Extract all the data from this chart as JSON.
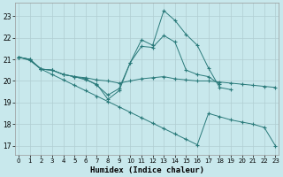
{
  "xlabel": "Humidex (Indice chaleur)",
  "xlim": [
    -0.3,
    23.3
  ],
  "ylim": [
    16.6,
    23.6
  ],
  "yticks": [
    17,
    18,
    19,
    20,
    21,
    22,
    23
  ],
  "xticks": [
    0,
    1,
    2,
    3,
    4,
    5,
    6,
    7,
    8,
    9,
    10,
    11,
    12,
    13,
    14,
    15,
    16,
    17,
    18,
    19,
    20,
    21,
    22,
    23
  ],
  "bg_color": "#c8e8ec",
  "grid_color": "#b0cdd2",
  "line_color": "#2a7a7a",
  "lines": [
    {
      "x": [
        0,
        1,
        2,
        3,
        4,
        5,
        6,
        7,
        8,
        9,
        10,
        11,
        12,
        13,
        14,
        15,
        16,
        17,
        18,
        19,
        20,
        21,
        22,
        23
      ],
      "y": [
        21.1,
        21.0,
        20.55,
        20.5,
        20.3,
        20.2,
        20.15,
        20.05,
        20.0,
        19.9,
        20.0,
        20.1,
        20.15,
        20.2,
        20.1,
        20.05,
        20.0,
        20.0,
        19.95,
        19.9,
        19.85,
        19.8,
        19.75,
        19.7
      ]
    },
    {
      "x": [
        0,
        1,
        2,
        3,
        4,
        5,
        6,
        7,
        8,
        9,
        10,
        11,
        12,
        13,
        14,
        15,
        16,
        17,
        18,
        19
      ],
      "y": [
        21.1,
        21.0,
        20.55,
        20.5,
        20.3,
        20.2,
        20.05,
        19.85,
        19.15,
        19.55,
        20.85,
        21.9,
        21.65,
        23.25,
        22.8,
        22.15,
        21.65,
        20.6,
        19.7,
        19.6
      ]
    },
    {
      "x": [
        0,
        1,
        2,
        3,
        4,
        5,
        6,
        7,
        8,
        9,
        10,
        11,
        12,
        13,
        14,
        15,
        16,
        17,
        18
      ],
      "y": [
        21.1,
        21.0,
        20.55,
        20.5,
        20.3,
        20.2,
        20.1,
        19.8,
        19.35,
        19.65,
        20.85,
        21.6,
        21.55,
        22.1,
        21.8,
        20.5,
        20.3,
        20.2,
        19.85
      ]
    },
    {
      "x": [
        0,
        1,
        2,
        3,
        4,
        5,
        6,
        7,
        8,
        9,
        10,
        11,
        12,
        13,
        14,
        15,
        16,
        17,
        18,
        19,
        20,
        21,
        22,
        23
      ],
      "y": [
        21.1,
        20.95,
        20.55,
        20.3,
        20.05,
        19.8,
        19.55,
        19.3,
        19.05,
        18.8,
        18.55,
        18.3,
        18.05,
        17.8,
        17.55,
        17.3,
        17.05,
        18.5,
        18.35,
        18.2,
        18.1,
        18.0,
        17.85,
        17.0
      ]
    }
  ]
}
